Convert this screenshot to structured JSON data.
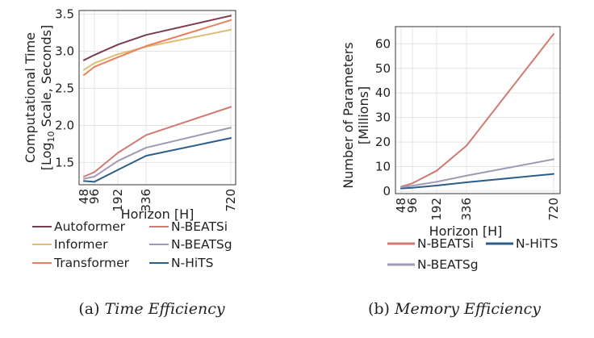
{
  "chart_data": [
    {
      "type": "line",
      "x": [
        48,
        96,
        192,
        336,
        720
      ],
      "xlabel": "Horizon [H]",
      "ylabel_line1": "Computational Time",
      "ylabel_line2_pre": "[Log",
      "ylabel_line2_sub": "10",
      "ylabel_line2_post": " Scale, Seconds]",
      "yticks": [
        "1.5",
        "2.0",
        "2.5",
        "3.0",
        "3.5"
      ],
      "ylim": [
        1.2,
        3.55
      ],
      "grid": true,
      "legend_position": "bottom",
      "series": [
        {
          "name": "Autoformer",
          "color": "#7b3b4c",
          "values": [
            2.88,
            2.95,
            3.09,
            3.22,
            3.48
          ]
        },
        {
          "name": "Informer",
          "color": "#ddbf73",
          "values": [
            2.75,
            2.84,
            2.96,
            3.06,
            3.29
          ]
        },
        {
          "name": "Transformer",
          "color": "#ea7f5f",
          "values": [
            2.68,
            2.79,
            2.92,
            3.07,
            3.42
          ]
        },
        {
          "name": "N-BEATSi",
          "color": "#d07a74",
          "values": [
            1.31,
            1.37,
            1.63,
            1.87,
            2.25
          ]
        },
        {
          "name": "N-BEATSg",
          "color": "#a29ab4",
          "values": [
            1.28,
            1.31,
            1.52,
            1.7,
            1.97
          ]
        },
        {
          "name": "N-HiTS",
          "color": "#2c5e8a",
          "values": [
            1.25,
            1.24,
            1.4,
            1.59,
            1.83
          ]
        }
      ],
      "caption_label": "(a) ",
      "caption_title": "Time Efficiency"
    },
    {
      "type": "line",
      "x": [
        48,
        96,
        192,
        336,
        720
      ],
      "xlabel": "Horizon [H]",
      "ylabel_line1": "Number of Parameters",
      "ylabel_line2": "[Millions]",
      "yticks": [
        "0",
        "10",
        "20",
        "30",
        "40",
        "50",
        "60"
      ],
      "ylim": [
        -1,
        67
      ],
      "grid": true,
      "legend_position": "bottom",
      "series": [
        {
          "name": "N-BEATSi",
          "color": "#d07a74",
          "values": [
            1.8,
            3.2,
            8.3,
            18.5,
            64
          ]
        },
        {
          "name": "N-HiTS",
          "color": "#2c5e8a",
          "values": [
            1.1,
            1.4,
            2.3,
            3.6,
            7.0
          ]
        },
        {
          "name": "N-BEATSg",
          "color": "#a29ab4",
          "values": [
            1.6,
            2.2,
            3.8,
            6.3,
            13.0
          ]
        }
      ],
      "caption_label": "(b) ",
      "caption_title": "Memory Efficiency"
    }
  ]
}
